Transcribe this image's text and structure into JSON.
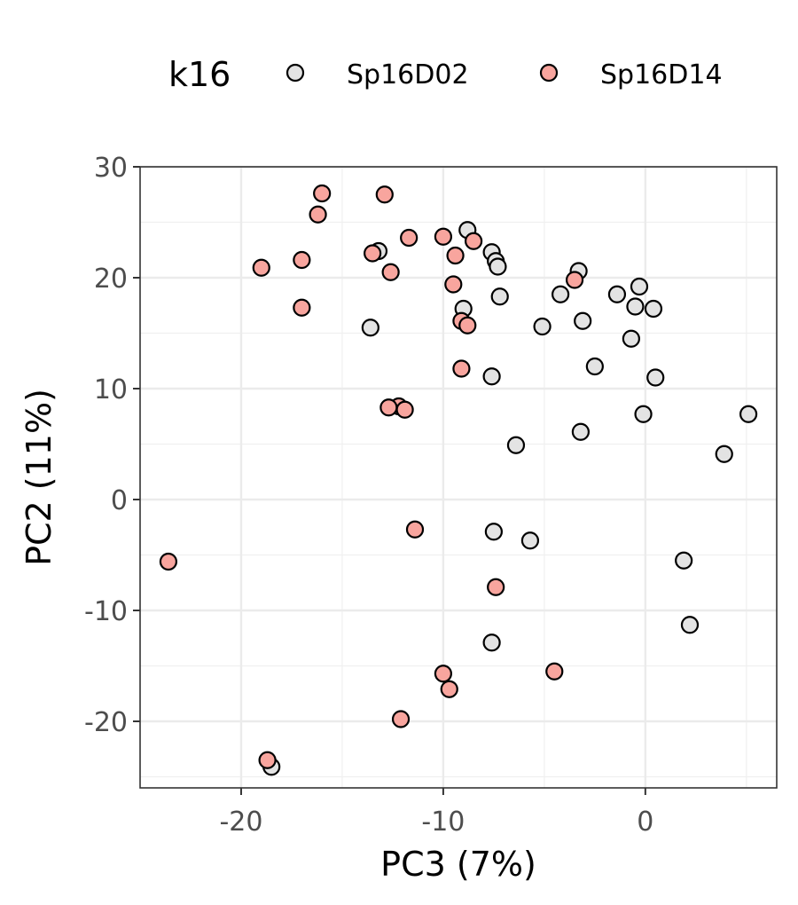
{
  "chart_data": {
    "type": "scatter",
    "title": "",
    "xlabel": "PC3 (7%)",
    "ylabel": "PC2 (11%)",
    "xlim": [
      -25,
      6.5
    ],
    "ylim": [
      -26,
      30
    ],
    "x_ticks": [
      -20,
      -10,
      0
    ],
    "y_ticks": [
      -20,
      -10,
      0,
      10,
      20,
      30
    ],
    "grid": true,
    "legend": {
      "title": "k16",
      "placement": "top"
    },
    "series": [
      {
        "name": "Sp16D02",
        "color": "#e3e3e3",
        "points": [
          {
            "x": -8.8,
            "y": 24.3
          },
          {
            "x": -7.6,
            "y": 22.3
          },
          {
            "x": -7.4,
            "y": 21.5
          },
          {
            "x": -7.3,
            "y": 21.0
          },
          {
            "x": -13.2,
            "y": 22.4
          },
          {
            "x": -3.3,
            "y": 20.6
          },
          {
            "x": -4.2,
            "y": 18.5
          },
          {
            "x": -7.2,
            "y": 18.3
          },
          {
            "x": -1.4,
            "y": 18.5
          },
          {
            "x": -0.3,
            "y": 19.2
          },
          {
            "x": -0.5,
            "y": 17.4
          },
          {
            "x": 0.4,
            "y": 17.2
          },
          {
            "x": -9.0,
            "y": 17.2
          },
          {
            "x": -3.1,
            "y": 16.1
          },
          {
            "x": -13.6,
            "y": 15.5
          },
          {
            "x": -5.1,
            "y": 15.6
          },
          {
            "x": -0.7,
            "y": 14.5
          },
          {
            "x": -2.5,
            "y": 12.0
          },
          {
            "x": -7.6,
            "y": 11.1
          },
          {
            "x": 0.5,
            "y": 11.0
          },
          {
            "x": -0.1,
            "y": 7.7
          },
          {
            "x": 5.1,
            "y": 7.7
          },
          {
            "x": -3.2,
            "y": 6.1
          },
          {
            "x": -6.4,
            "y": 4.9
          },
          {
            "x": 3.9,
            "y": 4.1
          },
          {
            "x": -7.5,
            "y": -2.9
          },
          {
            "x": -5.7,
            "y": -3.7
          },
          {
            "x": 1.9,
            "y": -5.5
          },
          {
            "x": -7.6,
            "y": -12.9
          },
          {
            "x": 2.2,
            "y": -11.3
          },
          {
            "x": -18.5,
            "y": -24.1
          }
        ]
      },
      {
        "name": "Sp16D14",
        "color": "#f8a59e",
        "points": [
          {
            "x": -16.0,
            "y": 27.6
          },
          {
            "x": -12.9,
            "y": 27.5
          },
          {
            "x": -16.2,
            "y": 25.7
          },
          {
            "x": -11.7,
            "y": 23.6
          },
          {
            "x": -10.0,
            "y": 23.7
          },
          {
            "x": -8.5,
            "y": 23.3
          },
          {
            "x": -13.5,
            "y": 22.2
          },
          {
            "x": -9.4,
            "y": 22.0
          },
          {
            "x": -17.0,
            "y": 21.6
          },
          {
            "x": -19.0,
            "y": 20.9
          },
          {
            "x": -12.6,
            "y": 20.5
          },
          {
            "x": -3.5,
            "y": 19.8
          },
          {
            "x": -9.5,
            "y": 19.4
          },
          {
            "x": -17.0,
            "y": 17.3
          },
          {
            "x": -9.1,
            "y": 16.1
          },
          {
            "x": -8.8,
            "y": 15.7
          },
          {
            "x": -9.1,
            "y": 11.8
          },
          {
            "x": -12.2,
            "y": 8.4
          },
          {
            "x": -12.7,
            "y": 8.3
          },
          {
            "x": -11.9,
            "y": 8.1
          },
          {
            "x": -11.4,
            "y": -2.7
          },
          {
            "x": -23.6,
            "y": -5.6
          },
          {
            "x": -7.4,
            "y": -7.9
          },
          {
            "x": -4.5,
            "y": -15.5
          },
          {
            "x": -10.0,
            "y": -15.7
          },
          {
            "x": -9.7,
            "y": -17.1
          },
          {
            "x": -12.1,
            "y": -19.8
          },
          {
            "x": -18.7,
            "y": -23.5
          }
        ]
      }
    ]
  }
}
